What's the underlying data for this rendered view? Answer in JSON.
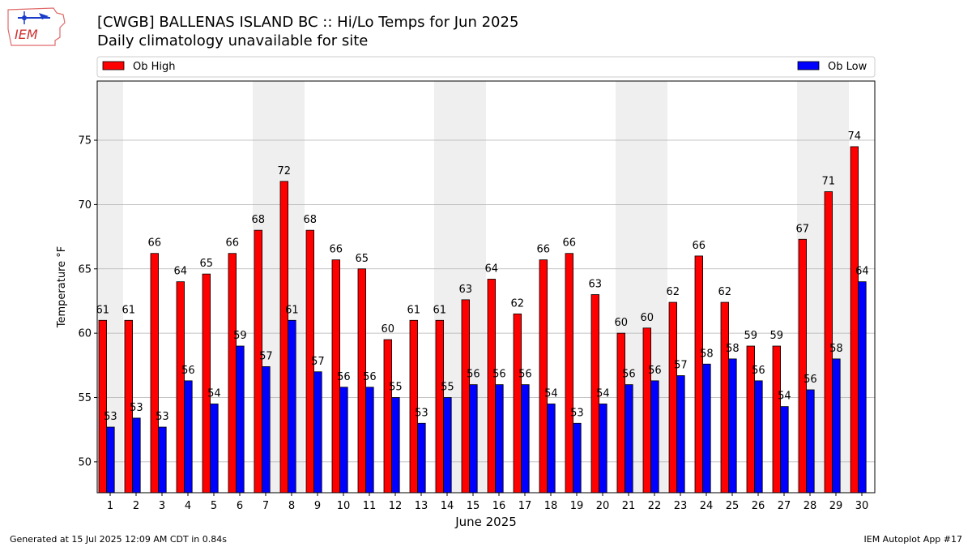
{
  "header": {
    "logo_text": "IEM",
    "title": "[CWGB] BALLENAS ISLAND  BC :: Hi/Lo Temps for Jun 2025",
    "subtitle": "Daily climatology unavailable for site"
  },
  "footer": {
    "left": "Generated at 15 Jul 2025 12:09 AM CDT in 0.84s",
    "right": "IEM Autoplot App #17"
  },
  "chart_data": {
    "type": "bar",
    "xlabel": "June 2025",
    "ylabel": "Temperature °F",
    "ylim": [
      47.6,
      79.6
    ],
    "yticks": [
      50,
      55,
      60,
      65,
      70,
      75
    ],
    "grid": true,
    "legend_placement": "top, above plot",
    "weekend_shading": true,
    "shaded_days": [
      1,
      7,
      8,
      14,
      15,
      21,
      22,
      28,
      29
    ],
    "categories": [
      "1",
      "2",
      "3",
      "4",
      "5",
      "6",
      "7",
      "8",
      "9",
      "10",
      "11",
      "12",
      "13",
      "14",
      "15",
      "16",
      "17",
      "18",
      "19",
      "20",
      "21",
      "22",
      "23",
      "24",
      "25",
      "26",
      "27",
      "28",
      "29",
      "30"
    ],
    "series": [
      {
        "name": "Ob High",
        "color": "#ff0000",
        "values": [
          61.0,
          61.0,
          66.2,
          64.0,
          64.6,
          66.2,
          68.0,
          71.8,
          68.0,
          65.7,
          65.0,
          59.5,
          61.0,
          61.0,
          62.6,
          64.2,
          61.5,
          65.7,
          66.2,
          63.0,
          60.0,
          60.4,
          62.4,
          66.0,
          62.4,
          59.0,
          59.0,
          67.3,
          71.0,
          74.5
        ],
        "labels": [
          "61",
          "61",
          "66",
          "64",
          "65",
          "66",
          "68",
          "72",
          "68",
          "66",
          "65",
          "60",
          "61",
          "61",
          "63",
          "64",
          "62",
          "66",
          "66",
          "63",
          "60",
          "60",
          "62",
          "66",
          "62",
          "59",
          "59",
          "67",
          "71",
          "74"
        ]
      },
      {
        "name": "Ob Low",
        "color": "#0000ff",
        "values": [
          52.7,
          53.4,
          52.7,
          56.3,
          54.5,
          59.0,
          57.4,
          61.0,
          57.0,
          55.8,
          55.8,
          55.0,
          53.0,
          55.0,
          56.0,
          56.0,
          56.0,
          54.5,
          53.0,
          54.5,
          56.0,
          56.3,
          56.7,
          57.6,
          58.0,
          56.3,
          54.3,
          55.6,
          58.0,
          64.0
        ],
        "labels": [
          "53",
          "53",
          "53",
          "56",
          "54",
          "59",
          "57",
          "61",
          "57",
          "56",
          "56",
          "55",
          "53",
          "55",
          "56",
          "56",
          "56",
          "54",
          "53",
          "54",
          "56",
          "56",
          "57",
          "58",
          "58",
          "56",
          "54",
          "56",
          "58",
          "64"
        ]
      }
    ]
  }
}
